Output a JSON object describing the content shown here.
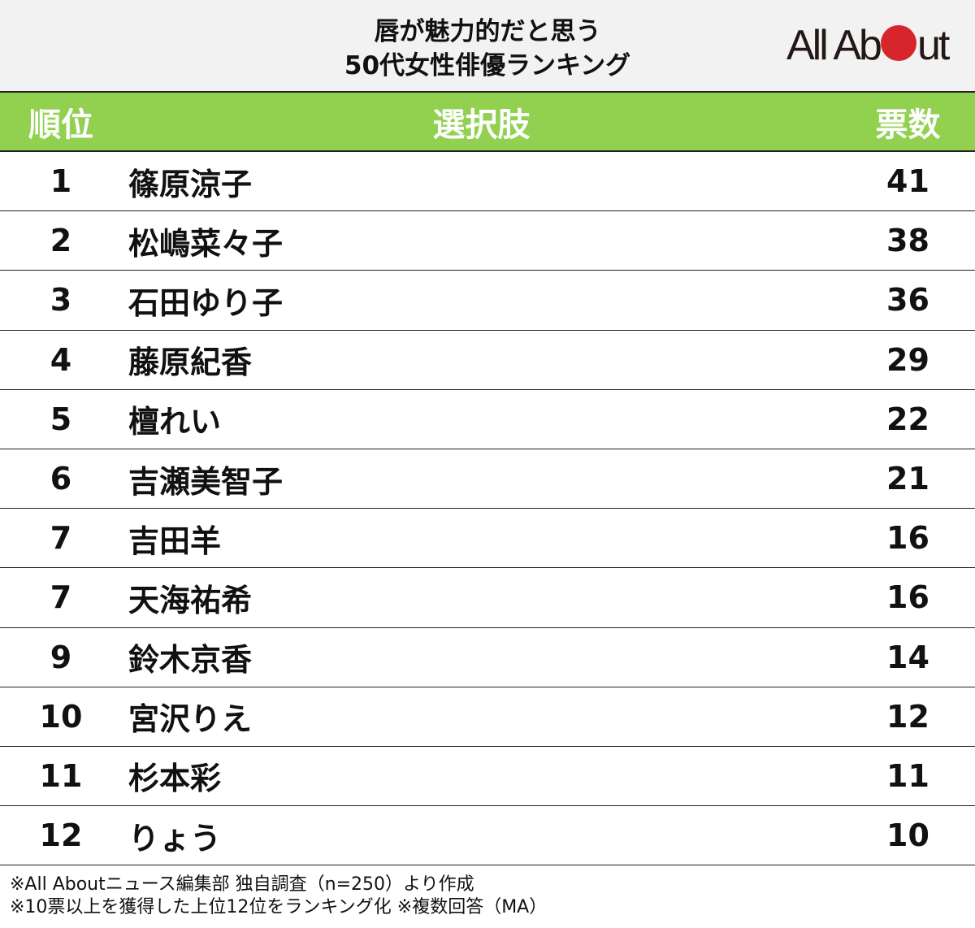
{
  "header": {
    "title_line1": "唇が魅力的だと思う",
    "title_line2": "50代女性俳優ランキング",
    "logo": {
      "text_before": "All Ab",
      "text_after": "ut",
      "dot_color": "#d7262b"
    }
  },
  "table": {
    "columns": [
      "順位",
      "選択肢",
      "票数"
    ],
    "header_color": "#92d050",
    "rows": [
      {
        "rank": "1",
        "name": "篠原涼子",
        "votes": "41"
      },
      {
        "rank": "2",
        "name": "松嶋菜々子",
        "votes": "38"
      },
      {
        "rank": "3",
        "name": "石田ゆり子",
        "votes": "36"
      },
      {
        "rank": "4",
        "name": "藤原紀香",
        "votes": "29"
      },
      {
        "rank": "5",
        "name": "檀れい",
        "votes": "22"
      },
      {
        "rank": "6",
        "name": "吉瀬美智子",
        "votes": "21"
      },
      {
        "rank": "7",
        "name": "吉田羊",
        "votes": "16"
      },
      {
        "rank": "7",
        "name": "天海祐希",
        "votes": "16"
      },
      {
        "rank": "9",
        "name": "鈴木京香",
        "votes": "14"
      },
      {
        "rank": "10",
        "name": "宮沢りえ",
        "votes": "12"
      },
      {
        "rank": "11",
        "name": "杉本彩",
        "votes": "11"
      },
      {
        "rank": "12",
        "name": "りょう",
        "votes": "10"
      }
    ]
  },
  "notes": [
    "※All Aboutニュース編集部 独自調査（n=250）より作成",
    "※10票以上を獲得した上位12位をランキング化 ※複数回答（MA）"
  ],
  "chart_data": {
    "type": "table",
    "title": "唇が魅力的だと思う50代女性俳優ランキング",
    "columns": [
      "順位",
      "選択肢",
      "票数"
    ],
    "categories": [
      "篠原涼子",
      "松嶋菜々子",
      "石田ゆり子",
      "藤原紀香",
      "檀れい",
      "吉瀬美智子",
      "吉田羊",
      "天海祐希",
      "鈴木京香",
      "宮沢りえ",
      "杉本彩",
      "りょう"
    ],
    "ranks": [
      1,
      2,
      3,
      4,
      5,
      6,
      7,
      7,
      9,
      10,
      11,
      12
    ],
    "values": [
      41,
      38,
      36,
      29,
      22,
      21,
      16,
      16,
      14,
      12,
      11,
      10
    ],
    "xlabel": "選択肢",
    "ylabel": "票数",
    "notes": [
      "n=250",
      "10票以上を獲得した上位12位",
      "複数回答（MA）"
    ]
  }
}
